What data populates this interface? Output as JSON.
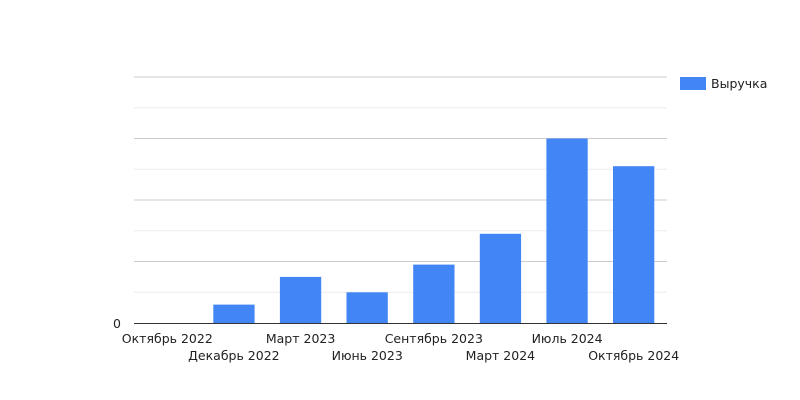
{
  "chart_data": {
    "type": "bar",
    "categories": [
      "Октябрь 2022",
      "Декабрь 2022",
      "Март 2023",
      "Июнь 2023",
      "Сентябрь 2023",
      "Март 2024",
      "Июль 2024",
      "Октябрь 2024"
    ],
    "series": [
      {
        "name": "Выручка",
        "values": [
          0,
          6,
          15,
          10,
          19,
          29,
          60,
          51
        ]
      }
    ],
    "ylim": [
      0,
      80
    ],
    "y_tick_labels": [
      "0"
    ],
    "grid": true,
    "legend_position": "right",
    "bar_color": "#4285f4"
  }
}
